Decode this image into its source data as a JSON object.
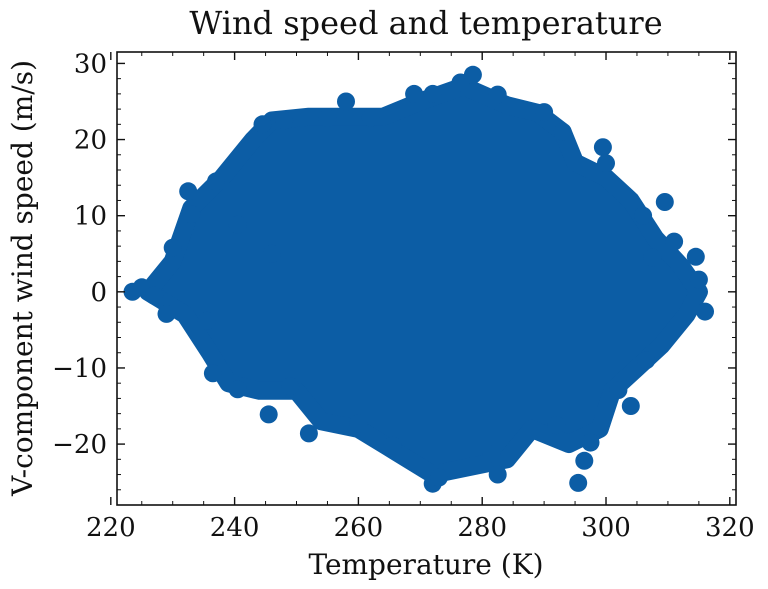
{
  "chart_data": {
    "type": "scatter",
    "title": "Wind speed and temperature",
    "xlabel": "Temperature (K)",
    "ylabel": "V-component wind speed (m/s)",
    "xlim": [
      221,
      321
    ],
    "ylim": [
      -28,
      31.5
    ],
    "xticks": [
      220,
      240,
      260,
      280,
      300,
      320
    ],
    "yticks": [
      -20,
      -10,
      0,
      10,
      20,
      30
    ],
    "xticks_labels": [
      "220",
      "240",
      "260",
      "280",
      "300",
      "320"
    ],
    "yticks_labels": [
      "−20",
      "−10",
      "0",
      "10",
      "20",
      "30"
    ],
    "grid": false,
    "legend": "none",
    "marker_color": "#0c5da5",
    "point_cloud": {
      "note_color": "#0c5da5",
      "x_range": [
        223.5,
        316
      ],
      "y_range": [
        -25.3,
        28.5
      ],
      "center": [
        272,
        2
      ]
    },
    "points": [
      [
        223.5,
        0.0
      ],
      [
        225.0,
        0.6
      ],
      [
        227.0,
        -0.5
      ],
      [
        229.0,
        -2.9
      ],
      [
        230.0,
        5.8
      ],
      [
        232.5,
        13.2
      ],
      [
        233.0,
        10.2
      ],
      [
        236.5,
        -10.7
      ],
      [
        245.5,
        -16.1
      ],
      [
        252.0,
        -18.6
      ],
      [
        258.0,
        25.0
      ],
      [
        269.0,
        26.0
      ],
      [
        272.0,
        26.0
      ],
      [
        276.5,
        27.5
      ],
      [
        278.5,
        28.5
      ],
      [
        282.5,
        25.9
      ],
      [
        272.0,
        -25.2
      ],
      [
        273.0,
        -24.4
      ],
      [
        282.5,
        -24.0
      ],
      [
        281.5,
        -21.3
      ],
      [
        295.5,
        -25.1
      ],
      [
        296.5,
        -22.2
      ],
      [
        299.5,
        19.0
      ],
      [
        300.0,
        16.9
      ],
      [
        309.5,
        11.8
      ],
      [
        311.0,
        6.6
      ],
      [
        314.5,
        4.6
      ],
      [
        315.0,
        1.6
      ],
      [
        316.0,
        -2.6
      ],
      [
        304.0,
        -15.0
      ],
      [
        244.5,
        22.0
      ],
      [
        248.0,
        22.5
      ],
      [
        255.0,
        22.8
      ],
      [
        262.0,
        22.9
      ],
      [
        290.0,
        23.6
      ],
      [
        293.0,
        21.0
      ],
      [
        306.0,
        10.0
      ],
      [
        307.5,
        4.5
      ],
      [
        306.5,
        -9.0
      ],
      [
        302.0,
        -12.9
      ],
      [
        297.5,
        -19.8
      ],
      [
        292.0,
        -17.5
      ],
      [
        265.5,
        -20.2
      ],
      [
        260.0,
        -17.3
      ],
      [
        249.0,
        -12.4
      ],
      [
        240.5,
        -12.8
      ],
      [
        235.5,
        -3.8
      ],
      [
        240.5,
        8.8
      ],
      [
        237.0,
        14.5
      ],
      [
        246.0,
        5.0
      ]
    ]
  }
}
